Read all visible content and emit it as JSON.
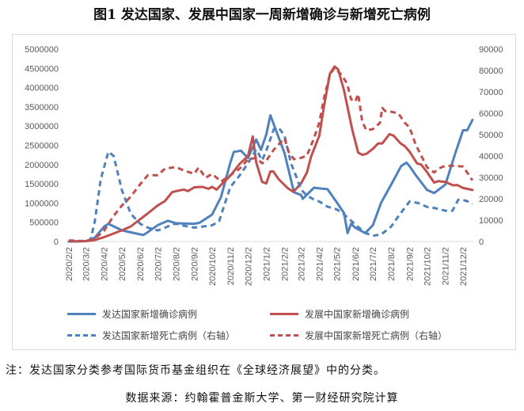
{
  "chart_data": {
    "type": "line",
    "title": "图1  发达国家、发展中国家一周新增确诊与新增死亡病例",
    "x_ticks": [
      "2020/2/2",
      "2020/3/2",
      "2020/4/2",
      "2020/5/2",
      "2020/6/2",
      "2020/7/2",
      "2020/8/2",
      "2020/9/2",
      "2020/10/2",
      "2020/11/2",
      "2020/12/2",
      "2021/1/2",
      "2021/2/2",
      "2021/3/2",
      "2021/4/2",
      "2021/5/2",
      "2021/6/2",
      "2021/7/2",
      "2021/8/2",
      "2021/9/2",
      "2021/10/2",
      "2021/11/2",
      "2021/12/2"
    ],
    "y_left": {
      "min": 0,
      "max": 5000000,
      "step": 500000,
      "ticks": [
        "0",
        "500000",
        "1000000",
        "1500000",
        "2000000",
        "2500000",
        "3000000",
        "3500000",
        "4000000",
        "4500000",
        "5000000"
      ]
    },
    "y_right": {
      "min": 0,
      "max": 90000,
      "step": 10000,
      "ticks": [
        "0",
        "10000",
        "20000",
        "30000",
        "40000",
        "50000",
        "60000",
        "70000",
        "80000",
        "90000"
      ]
    },
    "grid": false,
    "legend_position": "bottom",
    "series": [
      {
        "name": "发达国家新增确诊病例",
        "axis": "left",
        "color": "#4f81bd",
        "dash": false,
        "points": [
          [
            "2020-02-02",
            0
          ],
          [
            "2020-03-02",
            10000
          ],
          [
            "2020-03-17",
            100000
          ],
          [
            "2020-04-02",
            390000
          ],
          [
            "2020-04-09",
            460000
          ],
          [
            "2020-05-02",
            290000
          ],
          [
            "2020-06-02",
            185000
          ],
          [
            "2020-06-08",
            170000
          ],
          [
            "2020-07-02",
            425000
          ],
          [
            "2020-07-19",
            540000
          ],
          [
            "2020-08-02",
            475000
          ],
          [
            "2020-09-02",
            460000
          ],
          [
            "2020-09-11",
            490000
          ],
          [
            "2020-10-02",
            700000
          ],
          [
            "2020-10-17",
            1150000
          ],
          [
            "2020-11-02",
            2050000
          ],
          [
            "2020-11-08",
            2330000
          ],
          [
            "2020-11-20",
            2360000
          ],
          [
            "2020-12-02",
            2170000
          ],
          [
            "2020-12-16",
            2650000
          ],
          [
            "2020-12-24",
            2380000
          ],
          [
            "2021-01-02",
            2780000
          ],
          [
            "2021-01-09",
            3280000
          ],
          [
            "2021-02-02",
            2300000
          ],
          [
            "2021-02-18",
            1280000
          ],
          [
            "2021-03-02",
            1210000
          ],
          [
            "2021-03-05",
            1110000
          ],
          [
            "2021-03-24",
            1400000
          ],
          [
            "2021-04-02",
            1380000
          ],
          [
            "2021-04-16",
            1360000
          ],
          [
            "2021-05-02",
            1010000
          ],
          [
            "2021-05-14",
            740000
          ],
          [
            "2021-05-20",
            220000
          ],
          [
            "2021-05-26",
            460000
          ],
          [
            "2021-06-02",
            360000
          ],
          [
            "2021-06-19",
            220000
          ],
          [
            "2021-07-02",
            425000
          ],
          [
            "2021-07-16",
            1010000
          ],
          [
            "2021-08-02",
            1480000
          ],
          [
            "2021-08-19",
            1960000
          ],
          [
            "2021-08-28",
            2050000
          ],
          [
            "2021-09-02",
            1960000
          ],
          [
            "2021-09-13",
            1720000
          ],
          [
            "2021-10-02",
            1340000
          ],
          [
            "2021-10-14",
            1260000
          ],
          [
            "2021-11-02",
            1480000
          ],
          [
            "2021-11-19",
            2300000
          ],
          [
            "2021-12-02",
            2890000
          ],
          [
            "2021-12-09",
            2890000
          ],
          [
            "2021-12-18",
            3160000
          ]
        ]
      },
      {
        "name": "发展中国家新增确诊病例",
        "axis": "left",
        "color": "#c0504d",
        "dash": false,
        "points": [
          [
            "2020-02-02",
            0
          ],
          [
            "2020-03-02",
            10000
          ],
          [
            "2020-03-17",
            40000
          ],
          [
            "2020-04-02",
            116000
          ],
          [
            "2020-05-02",
            290000
          ],
          [
            "2020-05-17",
            390000
          ],
          [
            "2020-06-02",
            580000
          ],
          [
            "2020-06-15",
            730000
          ],
          [
            "2020-07-02",
            940000
          ],
          [
            "2020-07-14",
            1050000
          ],
          [
            "2020-07-26",
            1280000
          ],
          [
            "2020-08-02",
            1310000
          ],
          [
            "2020-08-15",
            1350000
          ],
          [
            "2020-08-22",
            1310000
          ],
          [
            "2020-09-02",
            1410000
          ],
          [
            "2020-09-16",
            1420000
          ],
          [
            "2020-09-26",
            1370000
          ],
          [
            "2020-10-02",
            1420000
          ],
          [
            "2020-10-10",
            1350000
          ],
          [
            "2020-10-17",
            1470000
          ],
          [
            "2020-11-02",
            1710000
          ],
          [
            "2020-11-18",
            2020000
          ],
          [
            "2020-12-02",
            2220000
          ],
          [
            "2020-12-10",
            2730000
          ],
          [
            "2020-12-16",
            2060000
          ],
          [
            "2020-12-26",
            1550000
          ],
          [
            "2021-01-02",
            1510000
          ],
          [
            "2021-01-09",
            1820000
          ],
          [
            "2021-01-14",
            1820000
          ],
          [
            "2021-01-23",
            1620000
          ],
          [
            "2021-02-08",
            1380000
          ],
          [
            "2021-02-17",
            1290000
          ],
          [
            "2021-03-02",
            1510000
          ],
          [
            "2021-03-12",
            1790000
          ],
          [
            "2021-03-19",
            2200000
          ],
          [
            "2021-04-02",
            2750000
          ],
          [
            "2021-04-10",
            3510000
          ],
          [
            "2021-04-20",
            4360000
          ],
          [
            "2021-04-28",
            4550000
          ],
          [
            "2021-05-04",
            4470000
          ],
          [
            "2021-05-14",
            3930000
          ],
          [
            "2021-05-28",
            2900000
          ],
          [
            "2021-06-07",
            2310000
          ],
          [
            "2021-06-14",
            2250000
          ],
          [
            "2021-06-21",
            2280000
          ],
          [
            "2021-07-02",
            2410000
          ],
          [
            "2021-07-11",
            2550000
          ],
          [
            "2021-07-18",
            2550000
          ],
          [
            "2021-07-30",
            2790000
          ],
          [
            "2021-08-06",
            2750000
          ],
          [
            "2021-08-18",
            2550000
          ],
          [
            "2021-08-25",
            2480000
          ],
          [
            "2021-09-02",
            2340000
          ],
          [
            "2021-09-15",
            2030000
          ],
          [
            "2021-09-22",
            2000000
          ],
          [
            "2021-10-02",
            1800000
          ],
          [
            "2021-10-14",
            1530000
          ],
          [
            "2021-10-21",
            1570000
          ],
          [
            "2021-11-02",
            1550000
          ],
          [
            "2021-11-15",
            1460000
          ],
          [
            "2021-11-22",
            1470000
          ],
          [
            "2021-12-02",
            1390000
          ],
          [
            "2021-12-18",
            1340000
          ]
        ]
      },
      {
        "name": "发达国家新增死亡病例（右轴）",
        "axis": "right",
        "color": "#4f81bd",
        "dash": true,
        "points": [
          [
            "2020-02-02",
            0
          ],
          [
            "2020-03-02",
            200
          ],
          [
            "2020-03-10",
            1000
          ],
          [
            "2020-03-17",
            9500
          ],
          [
            "2020-03-27",
            29000
          ],
          [
            "2020-04-09",
            42000
          ],
          [
            "2020-04-18",
            40000
          ],
          [
            "2020-05-02",
            24000
          ],
          [
            "2020-05-17",
            13000
          ],
          [
            "2020-06-02",
            8300
          ],
          [
            "2020-06-15",
            6500
          ],
          [
            "2020-07-02",
            5200
          ],
          [
            "2020-07-14",
            6400
          ],
          [
            "2020-07-26",
            8000
          ],
          [
            "2020-08-02",
            8300
          ],
          [
            "2020-08-17",
            7300
          ],
          [
            "2020-09-02",
            6500
          ],
          [
            "2020-09-16",
            7000
          ],
          [
            "2020-10-02",
            7600
          ],
          [
            "2020-10-14",
            9500
          ],
          [
            "2020-10-24",
            18000
          ],
          [
            "2020-11-02",
            25500
          ],
          [
            "2020-11-18",
            31000
          ],
          [
            "2020-12-02",
            36600
          ],
          [
            "2020-12-16",
            43000
          ],
          [
            "2020-12-26",
            38000
          ],
          [
            "2021-01-02",
            42500
          ],
          [
            "2021-01-15",
            52600
          ],
          [
            "2021-01-24",
            52900
          ],
          [
            "2021-02-02",
            49600
          ],
          [
            "2021-02-13",
            36600
          ],
          [
            "2021-02-23",
            29600
          ],
          [
            "2021-03-02",
            24300
          ],
          [
            "2021-03-12",
            21500
          ],
          [
            "2021-03-24",
            19600
          ],
          [
            "2021-04-02",
            18700
          ],
          [
            "2021-04-16",
            16300
          ],
          [
            "2021-05-02",
            15000
          ],
          [
            "2021-05-14",
            12700
          ],
          [
            "2021-05-26",
            9700
          ],
          [
            "2021-06-07",
            6800
          ],
          [
            "2021-06-19",
            4000
          ],
          [
            "2021-07-02",
            2700
          ],
          [
            "2021-07-16",
            3300
          ],
          [
            "2021-08-02",
            7000
          ],
          [
            "2021-08-14",
            11700
          ],
          [
            "2021-09-02",
            18700
          ],
          [
            "2021-09-17",
            18000
          ],
          [
            "2021-10-02",
            16200
          ],
          [
            "2021-10-14",
            15700
          ],
          [
            "2021-11-02",
            14400
          ],
          [
            "2021-11-14",
            14400
          ],
          [
            "2021-11-24",
            19600
          ],
          [
            "2021-12-02",
            19400
          ],
          [
            "2021-12-09",
            18900
          ],
          [
            "2021-12-18",
            17600
          ]
        ]
      },
      {
        "name": "发展中国家新增死亡病例（右轴）",
        "axis": "right",
        "color": "#c0504d",
        "dash": true,
        "points": [
          [
            "2020-02-02",
            500
          ],
          [
            "2020-03-02",
            200
          ],
          [
            "2020-03-17",
            1300
          ],
          [
            "2020-04-02",
            5200
          ],
          [
            "2020-04-18",
            12000
          ],
          [
            "2020-05-02",
            16900
          ],
          [
            "2020-05-17",
            21000
          ],
          [
            "2020-06-02",
            26800
          ],
          [
            "2020-06-15",
            31000
          ],
          [
            "2020-07-02",
            31000
          ],
          [
            "2020-07-14",
            34100
          ],
          [
            "2020-08-02",
            34800
          ],
          [
            "2020-08-17",
            33000
          ],
          [
            "2020-09-02",
            31700
          ],
          [
            "2020-09-09",
            34600
          ],
          [
            "2020-09-21",
            29800
          ],
          [
            "2020-10-02",
            31600
          ],
          [
            "2020-10-10",
            29800
          ],
          [
            "2020-10-17",
            28000
          ],
          [
            "2020-11-02",
            31000
          ],
          [
            "2020-11-18",
            34100
          ],
          [
            "2020-12-02",
            38500
          ],
          [
            "2020-12-16",
            39100
          ],
          [
            "2020-12-26",
            36600
          ],
          [
            "2021-01-02",
            37800
          ],
          [
            "2021-01-15",
            43000
          ],
          [
            "2021-02-02",
            48300
          ],
          [
            "2021-02-09",
            41900
          ],
          [
            "2021-02-18",
            38500
          ],
          [
            "2021-03-02",
            39100
          ],
          [
            "2021-03-12",
            40200
          ],
          [
            "2021-03-24",
            48300
          ],
          [
            "2021-04-02",
            55700
          ],
          [
            "2021-04-10",
            67000
          ],
          [
            "2021-04-20",
            78200
          ],
          [
            "2021-04-28",
            81200
          ],
          [
            "2021-05-09",
            78200
          ],
          [
            "2021-05-19",
            74000
          ],
          [
            "2021-05-26",
            66500
          ],
          [
            "2021-06-02",
            65400
          ],
          [
            "2021-06-07",
            69000
          ],
          [
            "2021-06-14",
            56000
          ],
          [
            "2021-06-21",
            52000
          ],
          [
            "2021-07-02",
            52600
          ],
          [
            "2021-07-14",
            55500
          ],
          [
            "2021-07-18",
            62500
          ],
          [
            "2021-07-23",
            61000
          ],
          [
            "2021-08-02",
            60700
          ],
          [
            "2021-08-14",
            60000
          ],
          [
            "2021-08-26",
            55300
          ],
          [
            "2021-09-02",
            53500
          ],
          [
            "2021-09-13",
            45100
          ],
          [
            "2021-10-02",
            34700
          ],
          [
            "2021-10-14",
            32300
          ],
          [
            "2021-10-21",
            34100
          ],
          [
            "2021-11-02",
            35400
          ],
          [
            "2021-11-14",
            35400
          ],
          [
            "2021-12-02",
            35100
          ],
          [
            "2021-12-09",
            32300
          ],
          [
            "2021-12-18",
            28600
          ]
        ]
      }
    ]
  },
  "note": "注：发达国家分类参考国际货币基金组织在《全球经济展望》中的分类。",
  "source": "数据来源：约翰霍普金斯大学、第一财经研究院计算"
}
